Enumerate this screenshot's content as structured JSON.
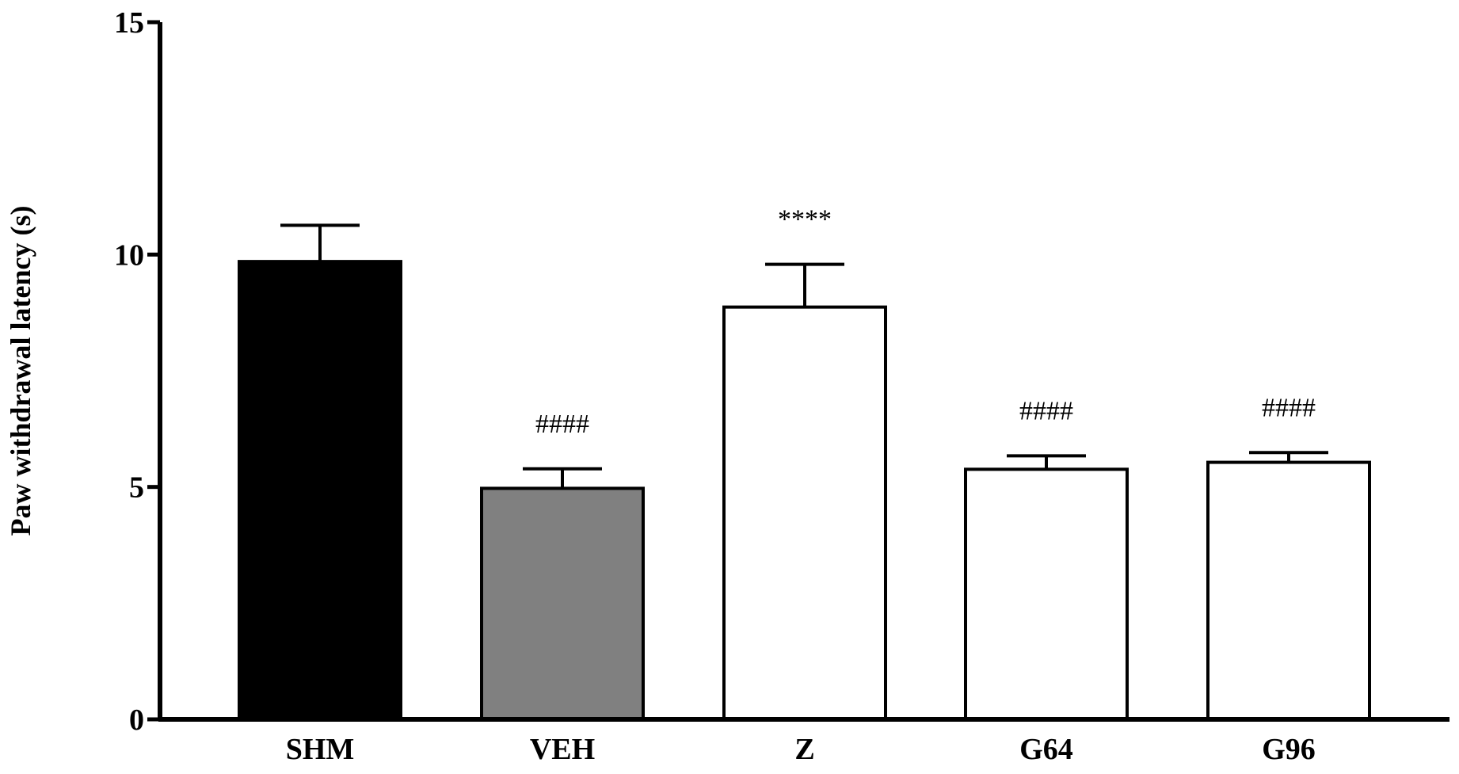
{
  "chart_data": {
    "type": "bar",
    "title": "",
    "xlabel": "",
    "ylabel": "Paw withdrawal latency (s)",
    "ylim": [
      0,
      15
    ],
    "yticks": [
      0,
      5,
      10,
      15
    ],
    "grid": false,
    "categories": [
      "SHM",
      "VEH",
      "Z",
      "G64",
      "G96"
    ],
    "values": [
      9.85,
      4.97,
      8.87,
      5.38,
      5.53
    ],
    "errors": [
      0.78,
      0.42,
      0.92,
      0.29,
      0.21
    ],
    "bar_colors": [
      "#000000",
      "#808080",
      "#ffffff",
      "#ffffff",
      "#ffffff"
    ],
    "annotations": [
      "",
      "####",
      "****",
      "####",
      "####"
    ]
  }
}
